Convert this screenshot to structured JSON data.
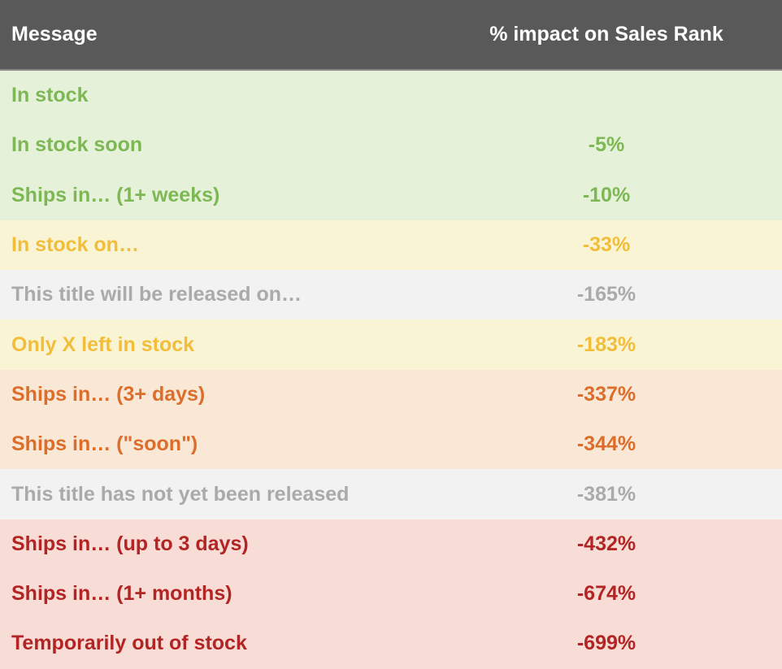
{
  "chart_data": {
    "type": "table",
    "columns": [
      "Message",
      "% impact on Sales Rank"
    ],
    "rows": [
      {
        "message": "In stock",
        "impact": "",
        "group": "green"
      },
      {
        "message": "In stock soon",
        "impact": "-5%",
        "group": "green"
      },
      {
        "message": "Ships in… (1+ weeks)",
        "impact": "-10%",
        "group": "green"
      },
      {
        "message": "In stock on…",
        "impact": "-33%",
        "group": "yellow"
      },
      {
        "message": "This title will be released on…",
        "impact": "-165%",
        "group": "gray"
      },
      {
        "message": "Only X left in stock",
        "impact": "-183%",
        "group": "yellow"
      },
      {
        "message": "Ships in… (3+ days)",
        "impact": "-337%",
        "group": "orange"
      },
      {
        "message": "Ships in… (\"soon\")",
        "impact": "-344%",
        "group": "orange"
      },
      {
        "message": "This title has not yet been released",
        "impact": "-381%",
        "group": "gray"
      },
      {
        "message": "Ships in… (up to 3 days)",
        "impact": "-432%",
        "group": "red"
      },
      {
        "message": "Ships in… (1+ months)",
        "impact": "-674%",
        "group": "red"
      },
      {
        "message": "Temporarily out of stock",
        "impact": "-699%",
        "group": "red"
      }
    ]
  },
  "colors": {
    "header_bg": "#595959",
    "header_text": "#ffffff",
    "green": {
      "bg": "#e6f1da",
      "text": "#7db854"
    },
    "yellow": {
      "bg": "#f9f5d4",
      "text": "#f2bd3a"
    },
    "gray": {
      "bg": "#f2f2f2",
      "text": "#aaaaaa"
    },
    "orange": {
      "bg": "#fae8d6",
      "text": "#dc6d2a"
    },
    "red": {
      "bg": "#f8ddd6",
      "text": "#b32424"
    }
  }
}
